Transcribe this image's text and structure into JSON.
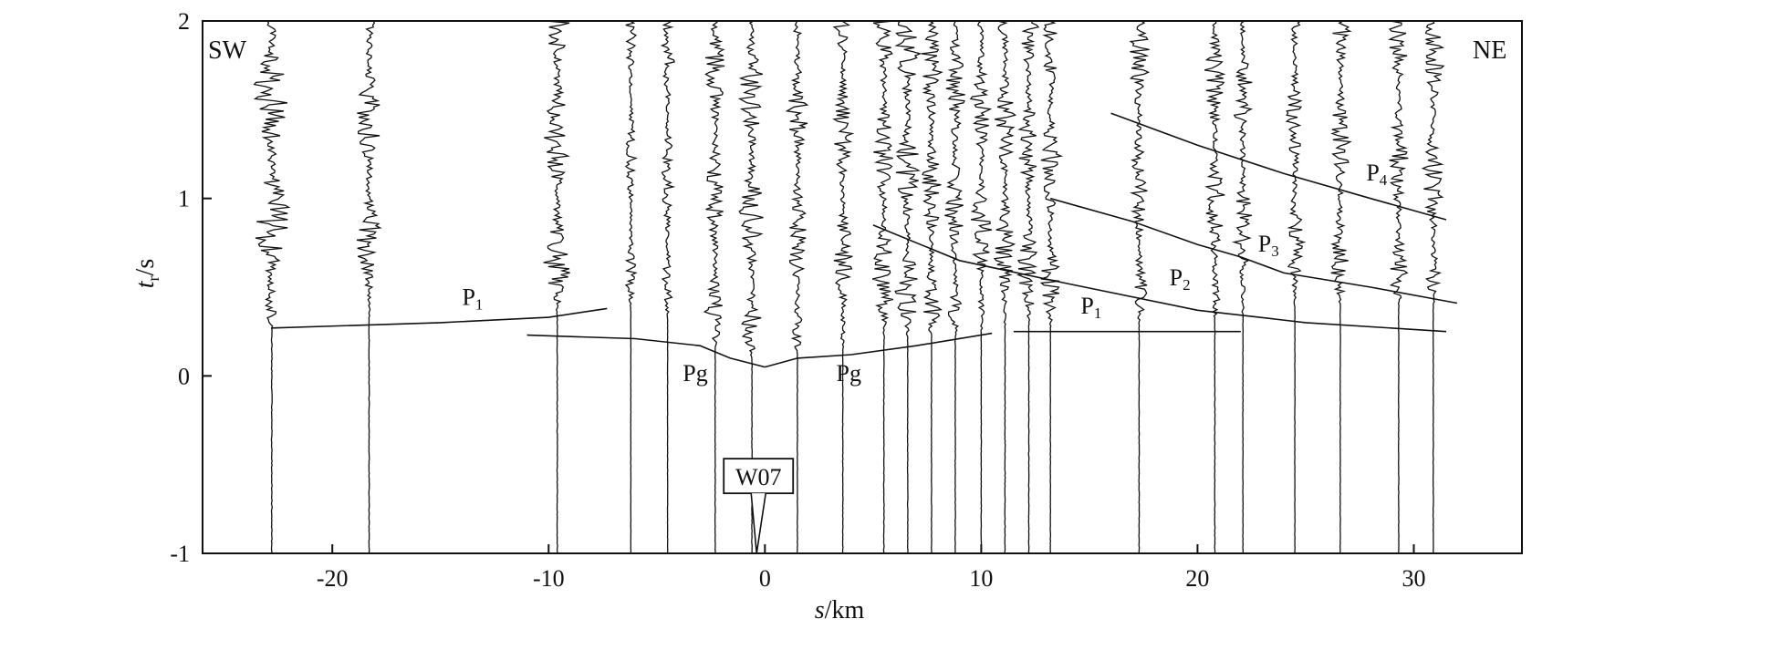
{
  "chart_data": {
    "type": "line",
    "title": "",
    "xlabel": {
      "italic": "s",
      "rest": "/km"
    },
    "ylabel": {
      "main": "t",
      "sub": "r",
      "rest": "/s"
    },
    "xlim": [
      -26,
      35
    ],
    "ylim": [
      -1,
      2
    ],
    "xticks": [
      -20,
      -10,
      0,
      10,
      20,
      30
    ],
    "yticks": [
      -1,
      0,
      1,
      2
    ],
    "corner_labels": {
      "left": "SW",
      "right": "NE"
    },
    "station_label": {
      "text": "W07",
      "x": -0.3,
      "y": -0.6
    },
    "traces": [
      {
        "x": -22.8,
        "amp": 0.55,
        "t0": 0.27
      },
      {
        "x": -18.3,
        "amp": 0.35,
        "t0": 0.3
      },
      {
        "x": -9.6,
        "amp": 0.4,
        "t0": 0.32
      },
      {
        "x": -6.2,
        "amp": 0.15,
        "t0": 0.36
      },
      {
        "x": -4.5,
        "amp": 0.2,
        "t0": 0.33
      },
      {
        "x": -2.3,
        "amp": 0.3,
        "t0": 0.15
      },
      {
        "x": -0.6,
        "amp": 0.35,
        "t0": 0.1
      },
      {
        "x": 1.5,
        "amp": 0.3,
        "t0": 0.12
      },
      {
        "x": 3.6,
        "amp": 0.3,
        "t0": 0.14
      },
      {
        "x": 5.5,
        "amp": 0.35,
        "t0": 0.17
      },
      {
        "x": 6.6,
        "amp": 0.35,
        "t0": 0.19
      },
      {
        "x": 7.7,
        "amp": 0.3,
        "t0": 0.21
      },
      {
        "x": 8.8,
        "amp": 0.3,
        "t0": 0.22
      },
      {
        "x": 10.0,
        "amp": 0.3,
        "t0": 0.24
      },
      {
        "x": 11.1,
        "amp": 0.3,
        "t0": 0.25
      },
      {
        "x": 12.2,
        "amp": 0.3,
        "t0": 0.26
      },
      {
        "x": 13.2,
        "amp": 0.3,
        "t0": 0.26
      },
      {
        "x": 17.3,
        "amp": 0.3,
        "t0": 0.3
      },
      {
        "x": 20.8,
        "amp": 0.3,
        "t0": 0.32
      },
      {
        "x": 22.1,
        "amp": 0.3,
        "t0": 0.33
      },
      {
        "x": 24.5,
        "amp": 0.25,
        "t0": 0.35
      },
      {
        "x": 26.6,
        "amp": 0.3,
        "t0": 0.37
      },
      {
        "x": 29.3,
        "amp": 0.3,
        "t0": 0.39
      },
      {
        "x": 30.9,
        "amp": 0.3,
        "t0": 0.4
      }
    ],
    "phase_curves": [
      {
        "name": "P1",
        "label": "P",
        "sub": "1",
        "label_at": [
          -14,
          0.4
        ],
        "points": [
          [
            -22.8,
            0.27
          ],
          [
            -15,
            0.3
          ],
          [
            -10,
            0.33
          ],
          [
            -7.3,
            0.38
          ]
        ]
      },
      {
        "name": "Pg",
        "label": "Pg",
        "sub": "",
        "label_at": [
          -3.8,
          -0.03
        ],
        "points": [
          [
            -11,
            0.23
          ],
          [
            -6,
            0.21
          ],
          [
            -3,
            0.17
          ],
          [
            -1.6,
            0.1
          ],
          [
            0,
            0.05
          ]
        ]
      },
      {
        "name": "Pg",
        "label": "Pg",
        "sub": "",
        "label_at": [
          3.3,
          -0.03
        ],
        "points": [
          [
            0,
            0.05
          ],
          [
            1.5,
            0.1
          ],
          [
            4,
            0.12
          ],
          [
            7,
            0.17
          ],
          [
            10.5,
            0.24
          ]
        ]
      },
      {
        "name": "P1",
        "label": "P",
        "sub": "1",
        "label_at": [
          14.6,
          0.35
        ],
        "points": [
          [
            11.5,
            0.25
          ],
          [
            15,
            0.25
          ],
          [
            20,
            0.25
          ],
          [
            22,
            0.25
          ]
        ]
      },
      {
        "name": "P2",
        "label": "P",
        "sub": "2",
        "label_at": [
          18.7,
          0.51
        ],
        "points": [
          [
            5.0,
            0.85
          ],
          [
            9,
            0.65
          ],
          [
            14,
            0.52
          ],
          [
            20,
            0.37
          ],
          [
            25,
            0.3
          ],
          [
            31.5,
            0.25
          ]
        ]
      },
      {
        "name": "P3",
        "label": "P",
        "sub": "3",
        "label_at": [
          22.8,
          0.7
        ],
        "points": [
          [
            13.2,
            1.0
          ],
          [
            17,
            0.87
          ],
          [
            20,
            0.74
          ],
          [
            22,
            0.67
          ],
          [
            24,
            0.58
          ],
          [
            28,
            0.5
          ],
          [
            32,
            0.41
          ]
        ]
      },
      {
        "name": "P4",
        "label": "P",
        "sub": "4",
        "label_at": [
          27.8,
          1.1
        ],
        "points": [
          [
            16,
            1.48
          ],
          [
            20,
            1.3
          ],
          [
            24,
            1.14
          ],
          [
            28,
            1.0
          ],
          [
            31.5,
            0.88
          ]
        ]
      }
    ]
  }
}
